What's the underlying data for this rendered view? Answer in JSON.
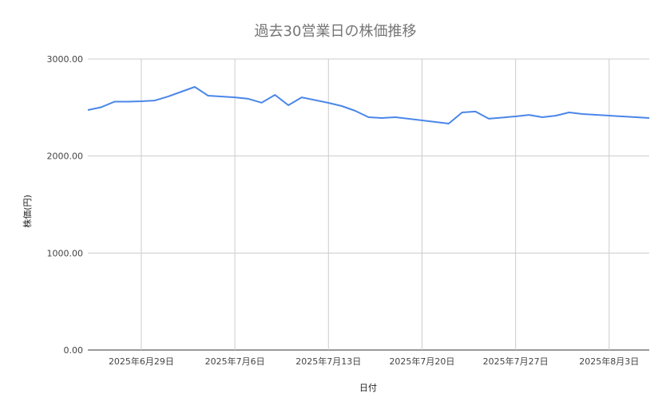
{
  "chart_data": {
    "type": "line",
    "title": "過去30営業日の株価推移",
    "xlabel": "日付",
    "ylabel": "株価(円)",
    "ylim": [
      0,
      3000
    ],
    "xlim": [
      "2025-06-25",
      "2025-08-06"
    ],
    "grid": true,
    "legend": "none",
    "y_ticks": [
      "0.00",
      "1000.00",
      "2000.00",
      "3000.00"
    ],
    "y_tick_values": [
      0,
      1000,
      2000,
      3000
    ],
    "x_ticks": [
      {
        "date": "2025-06-29",
        "label": "2025年6月29日"
      },
      {
        "date": "2025-07-06",
        "label": "2025年7月6日"
      },
      {
        "date": "2025-07-13",
        "label": "2025年7月13日"
      },
      {
        "date": "2025-07-20",
        "label": "2025年7月20日"
      },
      {
        "date": "2025-07-27",
        "label": "2025年7月27日"
      },
      {
        "date": "2025-08-03",
        "label": "2025年8月3日"
      }
    ],
    "series": [
      {
        "color": "#4a86e8",
        "x": [
          "2025-06-25",
          "2025-06-26",
          "2025-06-27",
          "2025-06-28",
          "2025-06-29",
          "2025-06-30",
          "2025-07-01",
          "2025-07-02",
          "2025-07-03",
          "2025-07-04",
          "2025-07-06",
          "2025-07-07",
          "2025-07-08",
          "2025-07-09",
          "2025-07-10",
          "2025-07-11",
          "2025-07-13",
          "2025-07-14",
          "2025-07-15",
          "2025-07-16",
          "2025-07-17",
          "2025-07-18",
          "2025-07-22",
          "2025-07-23",
          "2025-07-24",
          "2025-07-25",
          "2025-07-27",
          "2025-07-28",
          "2025-07-29",
          "2025-07-30",
          "2025-07-31",
          "2025-08-01",
          "2025-08-05",
          "2025-08-06"
        ],
        "values": [
          2474,
          2503,
          2560,
          2560,
          2564,
          2572,
          2613,
          2663,
          2712,
          2622,
          2605,
          2590,
          2550,
          2630,
          2523,
          2605,
          2548,
          2515,
          2466,
          2400,
          2392,
          2400,
          2334,
          2449,
          2458,
          2384,
          2408,
          2424,
          2400,
          2416,
          2449,
          2433,
          2400,
          2392
        ]
      }
    ]
  }
}
